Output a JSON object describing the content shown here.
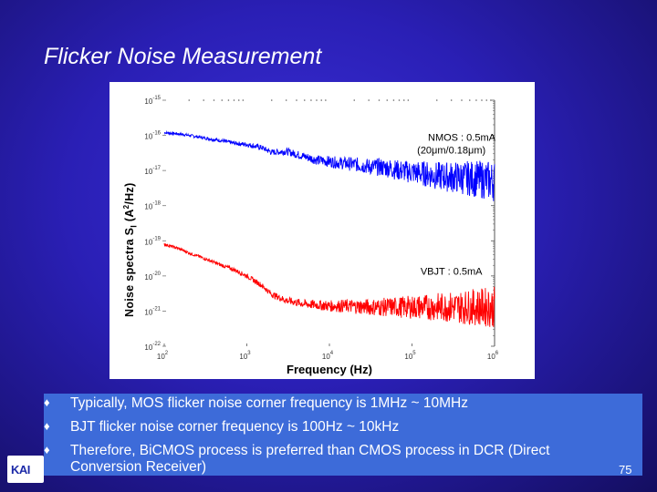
{
  "slide": {
    "title": "Flicker Noise Measurement",
    "page_number": "75",
    "logo_text": "KAI"
  },
  "bullets": [
    "Typically, MOS flicker noise corner frequency is 1MHz ~ 10MHz",
    "BJT flicker noise corner frequency is 100Hz ~ 10kHz",
    "Therefore, BiCMOS process is preferred than CMOS process in DCR (Direct",
    "Conversion Receiver)"
  ],
  "bullet_symbol": "♦",
  "colors": {
    "nmos_series": "#0000ff",
    "vbjt_series": "#ff0000",
    "bullet_box": "#3d6bd9"
  },
  "chart_data": {
    "type": "line",
    "xscale": "log",
    "yscale": "log",
    "xlim": [
      100,
      1000000
    ],
    "ylim": [
      1e-22,
      1e-15
    ],
    "xlabel": "Frequency (Hz)",
    "ylabel_parts": {
      "main": "Noise spectra S",
      "sub": "I",
      "paren": " (A",
      "sup": "2",
      "tail": "/Hz)"
    },
    "x_ticks": [
      {
        "value": 100,
        "base": "10",
        "exp": "2"
      },
      {
        "value": 1000,
        "base": "10",
        "exp": "3"
      },
      {
        "value": 10000,
        "base": "10",
        "exp": "4"
      },
      {
        "value": 100000,
        "base": "10",
        "exp": "5"
      },
      {
        "value": 1000000,
        "base": "10",
        "exp": "6"
      }
    ],
    "y_ticks": [
      {
        "value": -15,
        "base": "10",
        "exp": "-15"
      },
      {
        "value": -16,
        "base": "10",
        "exp": "-16"
      },
      {
        "value": -17,
        "base": "10",
        "exp": "-17"
      },
      {
        "value": -18,
        "base": "10",
        "exp": "-18"
      },
      {
        "value": -19,
        "base": "10",
        "exp": "-19"
      },
      {
        "value": -20,
        "base": "10",
        "exp": "-20"
      },
      {
        "value": -21,
        "base": "10",
        "exp": "-21"
      },
      {
        "value": -22,
        "base": "10",
        "exp": "-22"
      }
    ],
    "annotations": [
      {
        "text": "NMOS   : 0.5mA",
        "x": 400000,
        "y": 7e-17
      },
      {
        "text": "(20μm/0.18μm)",
        "x": 300000,
        "y": 3e-17
      },
      {
        "text": "VBJT : 0.5mA",
        "x": 300000,
        "y": 1.1e-20
      }
    ],
    "series": [
      {
        "name": "NMOS 0.5mA (20μm/0.18μm)",
        "color": "#0000ff",
        "x": [
          100,
          150,
          200,
          300,
          500,
          700,
          1000,
          1500,
          2000,
          3000,
          5000,
          7000,
          10000,
          15000,
          20000,
          30000,
          50000,
          70000,
          100000,
          150000,
          200000,
          300000,
          500000,
          700000,
          1000000
        ],
        "y": [
          1.2e-16,
          1.1e-16,
          1e-16,
          8.5e-17,
          7e-17,
          6e-17,
          5.5e-17,
          4.5e-17,
          3.3e-17,
          3.5e-17,
          2.5e-17,
          2e-17,
          1.8e-17,
          1.6e-17,
          1.5e-17,
          1.3e-17,
          1.2e-17,
          1e-17,
          9e-18,
          8e-18,
          7e-18,
          6.5e-18,
          6e-18,
          5.5e-18,
          5e-18
        ]
      },
      {
        "name": "VBJT 0.5mA",
        "color": "#ff0000",
        "x": [
          100,
          150,
          200,
          300,
          500,
          700,
          1000,
          1500,
          2000,
          3000,
          5000,
          7000,
          10000,
          15000,
          20000,
          30000,
          50000,
          70000,
          100000,
          150000,
          200000,
          300000,
          500000,
          700000,
          1000000
        ],
        "y": [
          8e-20,
          6e-20,
          4.5e-20,
          3.2e-20,
          2e-20,
          1.5e-20,
          1e-20,
          5.5e-21,
          3e-21,
          2e-21,
          1.6e-21,
          1.5e-21,
          1.4e-21,
          1.4e-21,
          1.35e-21,
          1.3e-21,
          1.3e-21,
          1.3e-21,
          1.3e-21,
          1.3e-21,
          1.3e-21,
          1.3e-21,
          1.3e-21,
          1.3e-21,
          1.3e-21
        ]
      }
    ]
  }
}
